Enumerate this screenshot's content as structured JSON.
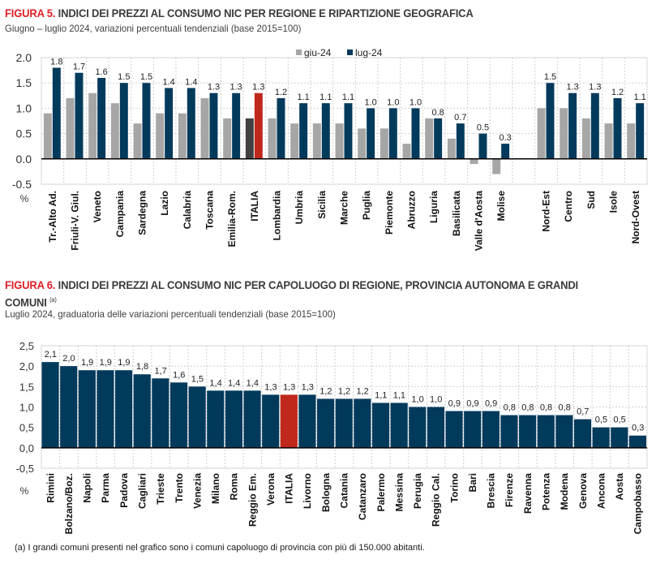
{
  "figure5": {
    "number": "FIGURA 5.",
    "title": "INDICI DEI PREZZI AL CONSUMO NIC PER REGIONE E RIPARTIZIONE GEOGRAFICA",
    "subtitle": "Giugno – luglio 2024, variazioni percentuali tendenziali (base 2015=100)"
  },
  "figure6": {
    "number": "FIGURA 6.",
    "title_line1": "INDICI DEI PREZZI AL CONSUMO NIC PER CAPOLUOGO DI REGIONE, PROVINCIA AUTONOMA E GRANDI",
    "title_line2": "COMUNI",
    "title_note_ref": "(a)",
    "subtitle": "Luglio 2024, graduatoria delle variazioni percentuali tendenziali (base 2015=100)"
  },
  "footnote": "(a)  I grandi comuni presenti nel grafico sono i comuni capoluogo di provincia con più di 150.000 abitanti.",
  "colors": {
    "navy": "#023a5c",
    "gray": "#a6a6a6",
    "italia_red": "#c0281b",
    "italia_dark_gray": "#404040",
    "title_red": "#e01e25"
  },
  "chart_data": [
    {
      "type": "bar",
      "title": "INDICI DEI PREZZI AL CONSUMO NIC PER REGIONE E RIPARTIZIONE GEOGRAFICA",
      "subtitle": "Giugno – luglio 2024, variazioni percentuali tendenziali (base 2015=100)",
      "xlabel": "",
      "ylabel": "%",
      "ylim": [
        -0.5,
        2.0
      ],
      "yticks": [
        "2.0",
        "1.5",
        "1.0",
        "0.5",
        "0.0",
        "-0.5"
      ],
      "ytick_values": [
        2.0,
        1.5,
        1.0,
        0.5,
        0.0,
        -0.5
      ],
      "grid": true,
      "legend_position": "top-right",
      "highlight_category": "ITALIA",
      "categories": [
        "Tr.-Alto Ad.",
        "Friuli-V. Giul.",
        "Veneto",
        "Campania",
        "Sardegna",
        "Lazio",
        "Calabria",
        "Toscana",
        "Emilia-Rom.",
        "ITALIA",
        "Lombardia",
        "Umbria",
        "Sicilia",
        "Marche",
        "Puglia",
        "Piemonte",
        "Abruzzo",
        "Liguria",
        "Basilicata",
        "Valle d'Aosta",
        "Molise",
        "",
        "Nord-Est",
        "Centro",
        "Sud",
        "Isole",
        "Nord-Ovest"
      ],
      "series": [
        {
          "name": "giu-24",
          "values": [
            0.9,
            1.2,
            1.3,
            1.1,
            0.7,
            0.9,
            0.9,
            1.2,
            0.8,
            0.8,
            0.8,
            0.7,
            0.7,
            0.7,
            0.6,
            0.6,
            0.3,
            0.8,
            0.4,
            -0.1,
            -0.3,
            null,
            1.0,
            1.0,
            0.8,
            0.7,
            0.7
          ]
        },
        {
          "name": "lug-24",
          "values": [
            1.8,
            1.7,
            1.6,
            1.5,
            1.5,
            1.4,
            1.4,
            1.3,
            1.3,
            1.3,
            1.2,
            1.1,
            1.1,
            1.1,
            1.0,
            1.0,
            1.0,
            0.8,
            0.7,
            0.5,
            0.3,
            null,
            1.5,
            1.3,
            1.3,
            1.2,
            1.1
          ]
        }
      ],
      "data_labels": [
        "1.8",
        "1.7",
        "1.6",
        "1.5",
        "1.5",
        "1.4",
        "1.4",
        "1.3",
        "1.3",
        "1.3",
        "1.2",
        "1.1",
        "1.1",
        "1.1",
        "1.0",
        "1.0",
        "1.0",
        "0.8",
        "0.7",
        "0.5",
        "0.3",
        "",
        "1.5",
        "1.3",
        "1.3",
        "1.2",
        "1.1"
      ]
    },
    {
      "type": "bar",
      "title": "INDICI DEI PREZZI AL CONSUMO NIC PER CAPOLUOGO DI REGIONE, PROVINCIA AUTONOMA E GRANDI COMUNI (a)",
      "subtitle": "Luglio 2024, graduatoria delle variazioni percentuali tendenziali (base 2015=100)",
      "xlabel": "",
      "ylabel": "%",
      "ylim": [
        -0.5,
        2.5
      ],
      "yticks": [
        "2,5",
        "2,0",
        "1,5",
        "1,0",
        "0,5",
        "0,0",
        "-0,5"
      ],
      "ytick_values": [
        2.5,
        2.0,
        1.5,
        1.0,
        0.5,
        0.0,
        -0.5
      ],
      "grid": true,
      "highlight_category": "ITALIA",
      "categories": [
        "Rimini",
        "Bolzano/Boz.",
        "Napoli",
        "Parma",
        "Padova",
        "Cagliari",
        "Trieste",
        "Trento",
        "Venezia",
        "Milano",
        "Roma",
        "Reggio Em.",
        "Verona",
        "ITALIA",
        "Livorno",
        "Bologna",
        "Catania",
        "Catanzaro",
        "Palermo",
        "Messina",
        "Perugia",
        "Reggio Cal.",
        "Torino",
        "Bari",
        "Brescia",
        "Firenze",
        "Ravenna",
        "Potenza",
        "Modena",
        "Genova",
        "Ancona",
        "Aosta",
        "Campobasso"
      ],
      "values": [
        2.1,
        2.0,
        1.9,
        1.9,
        1.9,
        1.8,
        1.7,
        1.6,
        1.5,
        1.4,
        1.4,
        1.4,
        1.3,
        1.3,
        1.3,
        1.2,
        1.2,
        1.2,
        1.1,
        1.1,
        1.0,
        1.0,
        0.9,
        0.9,
        0.9,
        0.8,
        0.8,
        0.8,
        0.8,
        0.7,
        0.5,
        0.5,
        0.3
      ],
      "data_labels": [
        "2,1",
        "2,0",
        "1,9",
        "1,9",
        "1,9",
        "1,8",
        "1,7",
        "1,6",
        "1,5",
        "1,4",
        "1,4",
        "1,4",
        "1,3",
        "1,3",
        "1,3",
        "1,2",
        "1,2",
        "1,2",
        "1,1",
        "1,1",
        "1,0",
        "1,0",
        "0,9",
        "0,9",
        "0,9",
        "0,8",
        "0,8",
        "0,8",
        "0,8",
        "0,7",
        "0,5",
        "0,5",
        "0,3"
      ]
    }
  ]
}
